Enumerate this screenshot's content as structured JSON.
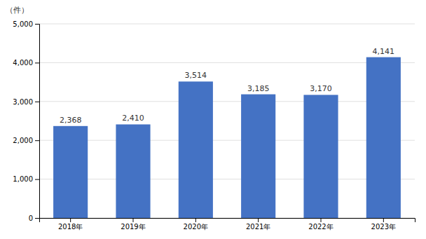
{
  "chart_data": {
    "type": "bar",
    "categories": [
      "2018年",
      "2019年",
      "2020年",
      "2021年",
      "2022年",
      "2023年"
    ],
    "values": [
      2368,
      2410,
      3514,
      3185,
      3170,
      4141
    ],
    "value_labels": [
      "2,368",
      "2,410",
      "3,514",
      "3,185",
      "3,170",
      "4,141"
    ],
    "color": "#4472C4",
    "ylabel": "（件）",
    "ylim": [
      0,
      5000
    ],
    "yticks": [
      0,
      {
        "value": 1000,
        "label": "1,000"
      },
      {
        "value": 2000,
        "label": "2,000"
      },
      {
        "value": 3000,
        "label": "3,000"
      },
      {
        "value": 4000,
        "label": "4,000"
      },
      {
        "value": 5000,
        "label": "5,000"
      }
    ],
    "grid": true,
    "data_labels": true
  }
}
